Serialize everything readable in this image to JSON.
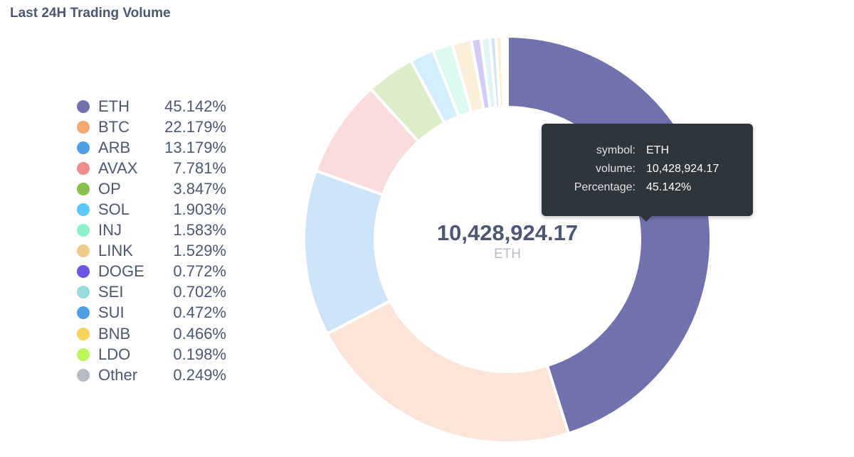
{
  "title": "Last 24H Trading Volume",
  "chart_data": {
    "type": "pie",
    "title": "Last 24H Trading Volume",
    "donut": true,
    "legend_position": "left",
    "center": {
      "value": "10,428,924.17",
      "label": "ETH"
    },
    "slices": [
      {
        "label": "ETH",
        "percent": "45.142%",
        "value": 45.142,
        "legend_color": "#7172ad",
        "fill": "#7172ad"
      },
      {
        "label": "BTC",
        "percent": "22.179%",
        "value": 22.179,
        "legend_color": "#f2a86f",
        "fill": "#fce5d8"
      },
      {
        "label": "ARB",
        "percent": "13.179%",
        "value": 13.179,
        "legend_color": "#509ee3",
        "fill": "#cde3f8"
      },
      {
        "label": "AVAX",
        "percent": "7.781%",
        "value": 7.781,
        "legend_color": "#ef8c8c",
        "fill": "#fbdcdc"
      },
      {
        "label": "OP",
        "percent": "3.847%",
        "value": 3.847,
        "legend_color": "#88bf4d",
        "fill": "#dcedca"
      },
      {
        "label": "SOL",
        "percent": "1.903%",
        "value": 1.903,
        "legend_color": "#5cc7fb",
        "fill": "#d3effd"
      },
      {
        "label": "INJ",
        "percent": "1.583%",
        "value": 1.583,
        "legend_color": "#8ef1cb",
        "fill": "#dcfaef"
      },
      {
        "label": "LINK",
        "percent": "1.529%",
        "value": 1.529,
        "legend_color": "#f2ca8c",
        "fill": "#fcefd9"
      },
      {
        "label": "DOGE",
        "percent": "0.772%",
        "value": 0.772,
        "legend_color": "#6a55e5",
        "fill": "#d3ccf7"
      },
      {
        "label": "SEI",
        "percent": "0.702%",
        "value": 0.702,
        "legend_color": "#98d9d9",
        "fill": "#def3f3"
      },
      {
        "label": "SUI",
        "percent": "0.472%",
        "value": 0.472,
        "legend_color": "#509ee3",
        "fill": "#cde3f8"
      },
      {
        "label": "BNB",
        "percent": "0.466%",
        "value": 0.466,
        "legend_color": "#f9d45c",
        "fill": "#fdf0c8"
      },
      {
        "label": "LDO",
        "percent": "0.198%",
        "value": 0.198,
        "legend_color": "#b9f75b",
        "fill": "#e6fcc8"
      },
      {
        "label": "Other",
        "percent": "0.249%",
        "value": 0.249,
        "legend_color": "#b8bbc3",
        "fill": "#e5e6e9"
      }
    ]
  },
  "tooltip": {
    "rows": [
      {
        "key": "symbol:",
        "value": "ETH"
      },
      {
        "key": "volume:",
        "value": "10,428,924.17"
      },
      {
        "key": "Percentage:",
        "value": "45.142%"
      }
    ]
  }
}
